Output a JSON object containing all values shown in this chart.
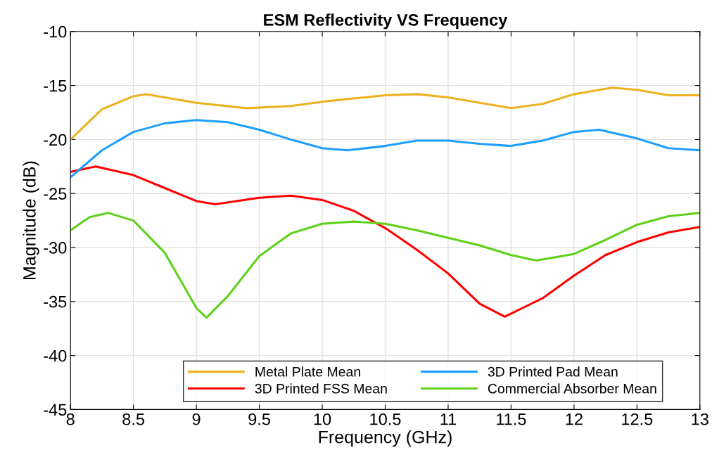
{
  "chart_data": {
    "type": "line",
    "title": "ESM Reflectivity VS Frequency",
    "xlabel": "Frequency (GHz)",
    "ylabel": "Magnitude (dB)",
    "xlim": [
      8,
      13
    ],
    "xticks": [
      8,
      8.5,
      9,
      9.5,
      10,
      10.5,
      11,
      11.5,
      12,
      12.5,
      13
    ],
    "ylim": [
      -45,
      -10
    ],
    "yticks": [
      -45,
      -40,
      -35,
      -30,
      -25,
      -20,
      -15,
      -10
    ],
    "grid": true,
    "legend": "bottom",
    "marker": "none",
    "line_style": "solid",
    "series": [
      {
        "name": "Metal Plate Mean",
        "color": "#edb120",
        "x": [
          8,
          8.25,
          8.5,
          8.6,
          9,
          9.4,
          9.75,
          10,
          10.5,
          10.75,
          11,
          11.5,
          11.75,
          12,
          12.3,
          12.5,
          12.75,
          13
        ],
        "values": [
          -20,
          -17.2,
          -16,
          -15.8,
          -16.6,
          -17.1,
          -16.9,
          -16.5,
          -15.9,
          -15.8,
          -16.1,
          -17.1,
          -16.7,
          -15.8,
          -15.2,
          -15.4,
          -15.9,
          -15.9
        ]
      },
      {
        "name": "3D Printed FSS Mean",
        "color": "#ff0000",
        "x": [
          8,
          8.2,
          8.5,
          8.75,
          9,
          9.15,
          9.5,
          9.75,
          10,
          10.25,
          10.5,
          10.75,
          11,
          11.25,
          11.45,
          11.75,
          12,
          12.25,
          12.5,
          12.75,
          13
        ],
        "values": [
          -23,
          -22.5,
          -23.3,
          -24.5,
          -25.7,
          -26,
          -25.4,
          -25.2,
          -25.6,
          -26.6,
          -28.2,
          -30.2,
          -32.4,
          -35.2,
          -36.4,
          -34.7,
          -32.6,
          -30.7,
          -29.5,
          -28.6,
          -28.1
        ]
      },
      {
        "name": "3D Printed Pad Mean",
        "color": "#1e9fff",
        "x": [
          8,
          8.25,
          8.5,
          8.75,
          9,
          9.25,
          9.5,
          9.75,
          10,
          10.2,
          10.5,
          10.75,
          11,
          11.25,
          11.5,
          11.75,
          12,
          12.2,
          12.5,
          12.75,
          13
        ],
        "values": [
          -23.5,
          -21,
          -19.3,
          -18.5,
          -18.2,
          -18.4,
          -19.1,
          -20,
          -20.8,
          -21,
          -20.6,
          -20.1,
          -20.1,
          -20.4,
          -20.6,
          -20.1,
          -19.3,
          -19.1,
          -19.9,
          -20.8,
          -21
        ]
      },
      {
        "name": "Commercial Absorber Mean",
        "color": "#5ed11a",
        "x": [
          8,
          8.15,
          8.3,
          8.5,
          8.75,
          9,
          9.08,
          9.25,
          9.5,
          9.75,
          10,
          10.25,
          10.5,
          10.75,
          11,
          11.25,
          11.5,
          11.7,
          12,
          12.25,
          12.5,
          12.75,
          13
        ],
        "values": [
          -28.4,
          -27.2,
          -26.8,
          -27.5,
          -30.5,
          -35.6,
          -36.5,
          -34.5,
          -30.8,
          -28.7,
          -27.8,
          -27.6,
          -27.8,
          -28.4,
          -29.1,
          -29.8,
          -30.7,
          -31.2,
          -30.6,
          -29.3,
          -27.9,
          -27.1,
          -26.8
        ]
      }
    ]
  }
}
